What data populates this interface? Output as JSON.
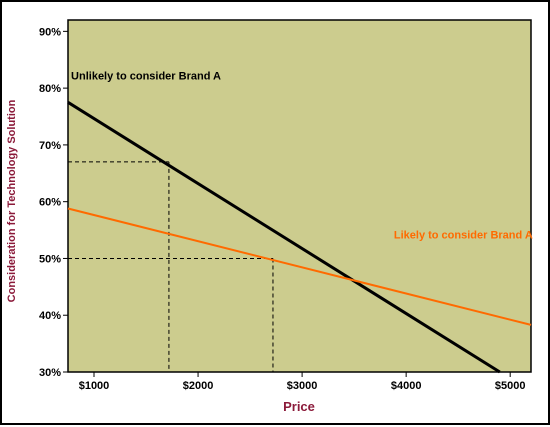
{
  "chart_data": {
    "type": "line",
    "xlabel": "Price",
    "ylabel": "Consideration for Technology Solution",
    "xlim": [
      750,
      5200
    ],
    "ylim": [
      30,
      92
    ],
    "x_ticks": [
      {
        "value": 1000,
        "label": "$1000"
      },
      {
        "value": 2000,
        "label": "$2000"
      },
      {
        "value": 3000,
        "label": "$3000"
      },
      {
        "value": 4000,
        "label": "$4000"
      },
      {
        "value": 5000,
        "label": "$5000"
      }
    ],
    "y_ticks": [
      {
        "value": 30,
        "label": "30%"
      },
      {
        "value": 40,
        "label": "40%"
      },
      {
        "value": 50,
        "label": "50%"
      },
      {
        "value": 60,
        "label": "60%"
      },
      {
        "value": 70,
        "label": "70%"
      },
      {
        "value": 80,
        "label": "80%"
      },
      {
        "value": 90,
        "label": "90%"
      }
    ],
    "series": [
      {
        "name": "Unlikely to consider Brand A",
        "color": "#000000",
        "x": [
          750,
          4900
        ],
        "y": [
          77.5,
          30
        ]
      },
      {
        "name": "Likely to consider Brand A",
        "color": "#ff6a00",
        "x": [
          750,
          5200
        ],
        "y": [
          58.8,
          38.3
        ]
      }
    ],
    "annotations": [
      {
        "text": "Unlikely to consider Brand A",
        "x": 1500,
        "y": 81.5,
        "color": "#000000"
      },
      {
        "text": "Likely to consider Brand A",
        "x": 4550,
        "y": 53.5,
        "color": "#ff6a00"
      }
    ],
    "reference_lines": [
      {
        "x": 1720,
        "y": 67
      },
      {
        "x": 2720,
        "y": 50
      }
    ],
    "plot_background": "#cccc8e",
    "grid": false
  }
}
